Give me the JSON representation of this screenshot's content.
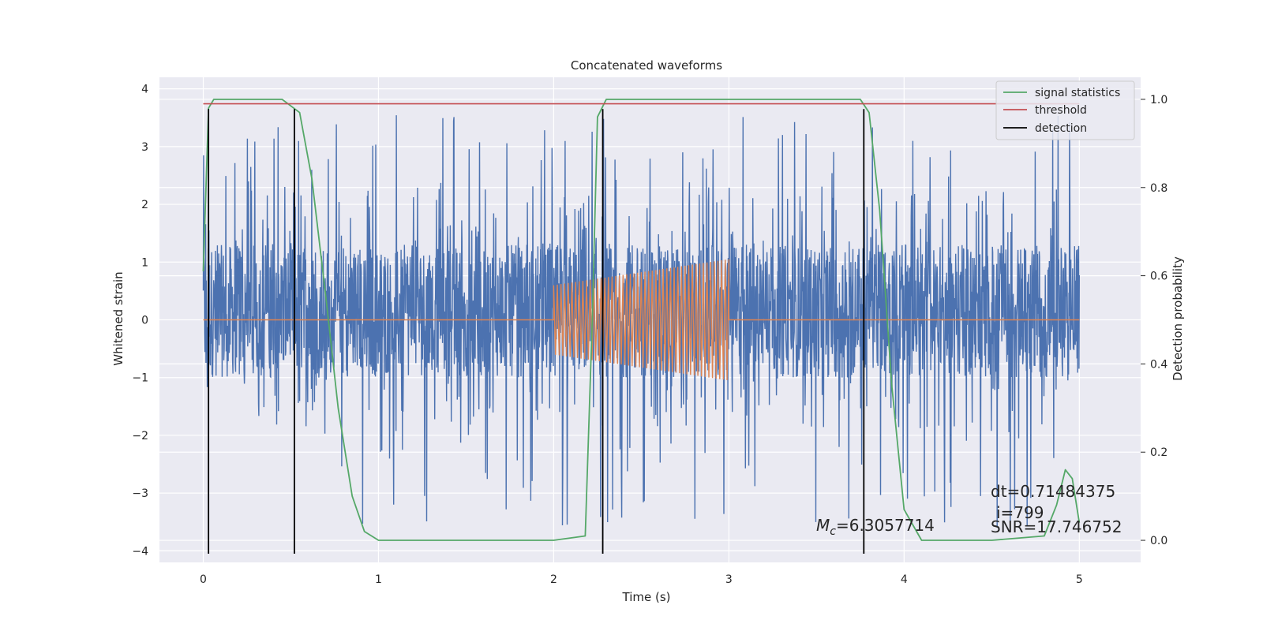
{
  "chart_data": {
    "type": "line",
    "title": "Concatenated waveforms",
    "xlabel": "Time (s)",
    "ylabel": "Whitened strain",
    "y2label": "Detection probability",
    "xlim": [
      -0.25,
      5.35
    ],
    "ylim": [
      -4.2,
      4.2
    ],
    "y2lim": [
      -0.05,
      1.05
    ],
    "xticks": [
      0,
      1,
      2,
      3,
      4,
      5
    ],
    "yticks": [
      4,
      3,
      2,
      1,
      0,
      -1,
      -2,
      -3,
      -4
    ],
    "y2ticks": [
      1.0,
      0.8,
      0.6,
      0.4,
      0.2,
      0.0
    ],
    "xtick_labels": [
      "0",
      "1",
      "2",
      "3",
      "4",
      "5"
    ],
    "ytick_labels": [
      "4",
      "3",
      "2",
      "1",
      "0",
      "−1",
      "−2",
      "−3",
      "−4"
    ],
    "y2tick_labels": [
      "1.0",
      "0.8",
      "0.6",
      "0.4",
      "0.2",
      "0.0"
    ],
    "grid": true,
    "legend_position": "top-right",
    "series": [
      {
        "name": "",
        "axis": "left",
        "color": "#4c72b0",
        "kind": "noise",
        "x_range": [
          0,
          5
        ],
        "y_band": [
          -1.0,
          1.3
        ],
        "y_extremes": [
          -3.7,
          3.6
        ]
      },
      {
        "name": "",
        "axis": "left",
        "color": "#dd8452",
        "kind": "chirp",
        "x": [
          0,
          2,
          3,
          5
        ],
        "y": [
          0,
          0,
          0,
          0
        ],
        "chirp_x_range": [
          2,
          3
        ],
        "chirp_amplitude": [
          0.6,
          1.05
        ]
      },
      {
        "name": "signal statistics",
        "axis": "right",
        "color": "#55a868",
        "x": [
          0,
          0.03,
          0.06,
          0.1,
          0.45,
          0.55,
          0.62,
          0.7,
          0.77,
          0.85,
          0.92,
          1.0,
          2.0,
          2.18,
          2.22,
          2.25,
          2.3,
          2.4,
          3.75,
          3.8,
          3.86,
          3.93,
          4.0,
          4.1,
          4.5,
          4.8,
          4.87,
          4.92,
          4.96,
          5.0
        ],
        "y": [
          0.61,
          0.98,
          1.0,
          1.0,
          1.0,
          0.97,
          0.82,
          0.55,
          0.3,
          0.1,
          0.02,
          0.0,
          0.0,
          0.01,
          0.5,
          0.96,
          1.0,
          1.0,
          1.0,
          0.97,
          0.75,
          0.35,
          0.07,
          0.0,
          0.0,
          0.01,
          0.08,
          0.16,
          0.14,
          0.04
        ]
      },
      {
        "name": "threshold",
        "axis": "right",
        "color": "#c44e52",
        "x": [
          0,
          5
        ],
        "y": [
          0.99,
          0.99
        ]
      }
    ],
    "detection": {
      "name": "detection",
      "color": "#000000",
      "x": [
        0.03,
        0.52,
        2.28,
        3.77
      ],
      "y_range": [
        -4.05,
        3.65
      ]
    },
    "annotations": {
      "mc_label": "M",
      "mc_sub": "c",
      "mc_value": "=6.3057714",
      "dt": "dt=0.71484375",
      "i": "i=799",
      "snr": "SNR=17.746752"
    }
  }
}
